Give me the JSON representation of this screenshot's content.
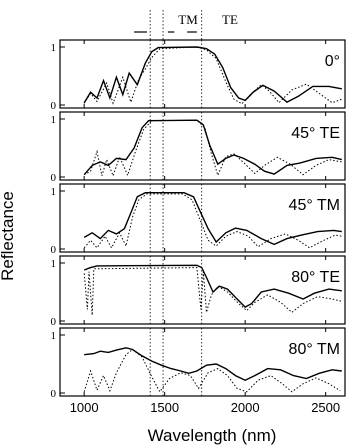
{
  "chart_data": {
    "type": "line",
    "xlabel": "Wavelength (nm)",
    "ylabel": "Reflectance",
    "xlim": [
      850,
      2620
    ],
    "ylim": [
      0,
      1
    ],
    "x_ticks": [
      "1000",
      "1500",
      "2000",
      "2500"
    ],
    "y_ticks": [
      "0",
      "1"
    ],
    "band_labels": [
      "TM",
      "TE"
    ],
    "band_edges_nm": [
      1410,
      1490,
      1730
    ],
    "series_styles": [
      "solid",
      "dotted"
    ],
    "panels": [
      {
        "label": "0°",
        "solid": [
          [
            1000,
            0.04
          ],
          [
            1040,
            0.22
          ],
          [
            1080,
            0.12
          ],
          [
            1120,
            0.42
          ],
          [
            1160,
            0.12
          ],
          [
            1200,
            0.48
          ],
          [
            1240,
            0.18
          ],
          [
            1280,
            0.55
          ],
          [
            1330,
            0.35
          ],
          [
            1380,
            0.72
          ],
          [
            1420,
            0.92
          ],
          [
            1460,
            0.99
          ],
          [
            1700,
            1.0
          ],
          [
            1760,
            0.97
          ],
          [
            1810,
            0.88
          ],
          [
            1860,
            0.65
          ],
          [
            1910,
            0.3
          ],
          [
            1960,
            0.12
          ],
          [
            2000,
            0.08
          ],
          [
            2050,
            0.22
          ],
          [
            2110,
            0.34
          ],
          [
            2180,
            0.24
          ],
          [
            2260,
            0.05
          ],
          [
            2330,
            0.15
          ],
          [
            2420,
            0.32
          ],
          [
            2520,
            0.32
          ],
          [
            2600,
            0.28
          ]
        ],
        "dotted": [
          [
            1000,
            0.03
          ],
          [
            1040,
            0.2
          ],
          [
            1080,
            0.06
          ],
          [
            1140,
            0.38
          ],
          [
            1180,
            0.03
          ],
          [
            1240,
            0.48
          ],
          [
            1290,
            0.05
          ],
          [
            1340,
            0.45
          ],
          [
            1380,
            0.62
          ],
          [
            1420,
            0.82
          ],
          [
            1470,
            0.97
          ],
          [
            1700,
            1.0
          ],
          [
            1760,
            0.95
          ],
          [
            1820,
            0.8
          ],
          [
            1880,
            0.4
          ],
          [
            1930,
            0.1
          ],
          [
            1980,
            0.02
          ],
          [
            2040,
            0.2
          ],
          [
            2100,
            0.35
          ],
          [
            2150,
            0.24
          ],
          [
            2210,
            0.04
          ],
          [
            2290,
            0.26
          ],
          [
            2380,
            0.36
          ],
          [
            2460,
            0.2
          ],
          [
            2540,
            0.04
          ],
          [
            2600,
            0.1
          ]
        ]
      },
      {
        "label": "45° TE",
        "solid": [
          [
            1000,
            0.04
          ],
          [
            1050,
            0.2
          ],
          [
            1100,
            0.26
          ],
          [
            1150,
            0.2
          ],
          [
            1200,
            0.32
          ],
          [
            1260,
            0.3
          ],
          [
            1310,
            0.5
          ],
          [
            1360,
            0.85
          ],
          [
            1400,
            0.97
          ],
          [
            1700,
            0.98
          ],
          [
            1740,
            0.9
          ],
          [
            1780,
            0.55
          ],
          [
            1830,
            0.22
          ],
          [
            1880,
            0.32
          ],
          [
            1930,
            0.38
          ],
          [
            1990,
            0.32
          ],
          [
            2060,
            0.22
          ],
          [
            2120,
            0.1
          ],
          [
            2180,
            0.05
          ],
          [
            2260,
            0.2
          ],
          [
            2340,
            0.24
          ],
          [
            2440,
            0.32
          ],
          [
            2540,
            0.34
          ],
          [
            2600,
            0.3
          ]
        ],
        "dotted": [
          [
            1000,
            0.04
          ],
          [
            1040,
            0.1
          ],
          [
            1080,
            0.44
          ],
          [
            1110,
            0.02
          ],
          [
            1140,
            0.3
          ],
          [
            1180,
            0.02
          ],
          [
            1220,
            0.35
          ],
          [
            1270,
            0.03
          ],
          [
            1320,
            0.45
          ],
          [
            1370,
            0.82
          ],
          [
            1420,
            0.97
          ],
          [
            1700,
            0.98
          ],
          [
            1750,
            0.85
          ],
          [
            1790,
            0.4
          ],
          [
            1830,
            0.03
          ],
          [
            1880,
            0.35
          ],
          [
            1930,
            0.4
          ],
          [
            1990,
            0.25
          ],
          [
            2060,
            0.06
          ],
          [
            2120,
            0.2
          ],
          [
            2200,
            0.34
          ],
          [
            2280,
            0.22
          ],
          [
            2360,
            0.04
          ],
          [
            2440,
            0.2
          ],
          [
            2520,
            0.3
          ],
          [
            2600,
            0.26
          ]
        ]
      },
      {
        "label": "45° TM",
        "solid": [
          [
            1000,
            0.2
          ],
          [
            1050,
            0.28
          ],
          [
            1100,
            0.18
          ],
          [
            1150,
            0.32
          ],
          [
            1200,
            0.26
          ],
          [
            1250,
            0.35
          ],
          [
            1290,
            0.62
          ],
          [
            1330,
            0.9
          ],
          [
            1380,
            0.97
          ],
          [
            1620,
            0.97
          ],
          [
            1680,
            0.9
          ],
          [
            1720,
            0.65
          ],
          [
            1770,
            0.35
          ],
          [
            1820,
            0.12
          ],
          [
            1880,
            0.28
          ],
          [
            1940,
            0.36
          ],
          [
            2010,
            0.32
          ],
          [
            2100,
            0.18
          ],
          [
            2180,
            0.08
          ],
          [
            2260,
            0.18
          ],
          [
            2350,
            0.24
          ],
          [
            2450,
            0.3
          ],
          [
            2550,
            0.32
          ],
          [
            2600,
            0.3
          ]
        ],
        "dotted": [
          [
            1000,
            0.02
          ],
          [
            1040,
            0.15
          ],
          [
            1080,
            0.02
          ],
          [
            1130,
            0.22
          ],
          [
            1170,
            0.02
          ],
          [
            1220,
            0.28
          ],
          [
            1260,
            0.05
          ],
          [
            1300,
            0.55
          ],
          [
            1340,
            0.85
          ],
          [
            1390,
            0.95
          ],
          [
            1610,
            0.95
          ],
          [
            1670,
            0.85
          ],
          [
            1720,
            0.5
          ],
          [
            1770,
            0.15
          ],
          [
            1820,
            0.05
          ],
          [
            1880,
            0.22
          ],
          [
            1950,
            0.3
          ],
          [
            2020,
            0.22
          ],
          [
            2080,
            0.04
          ],
          [
            2160,
            0.18
          ],
          [
            2250,
            0.26
          ],
          [
            2330,
            0.15
          ],
          [
            2400,
            0.02
          ],
          [
            2480,
            0.14
          ],
          [
            2560,
            0.24
          ],
          [
            2600,
            0.22
          ]
        ]
      },
      {
        "label": "80° TE",
        "solid": [
          [
            1000,
            0.88
          ],
          [
            1040,
            0.92
          ],
          [
            1080,
            0.95
          ],
          [
            1700,
            0.96
          ],
          [
            1730,
            0.92
          ],
          [
            1760,
            0.75
          ],
          [
            1800,
            0.5
          ],
          [
            1840,
            0.6
          ],
          [
            1890,
            0.55
          ],
          [
            1950,
            0.38
          ],
          [
            2000,
            0.24
          ],
          [
            2040,
            0.3
          ],
          [
            2100,
            0.5
          ],
          [
            2180,
            0.55
          ],
          [
            2270,
            0.48
          ],
          [
            2360,
            0.38
          ],
          [
            2430,
            0.48
          ],
          [
            2520,
            0.55
          ],
          [
            2600,
            0.52
          ]
        ],
        "dotted": [
          [
            1000,
            0.82
          ],
          [
            1020,
            0.2
          ],
          [
            1030,
            0.85
          ],
          [
            1050,
            0.1
          ],
          [
            1060,
            0.9
          ],
          [
            1700,
            0.92
          ],
          [
            1725,
            0.2
          ],
          [
            1740,
            0.85
          ],
          [
            1760,
            0.15
          ],
          [
            1790,
            0.45
          ],
          [
            1830,
            0.6
          ],
          [
            1890,
            0.5
          ],
          [
            1960,
            0.3
          ],
          [
            2010,
            0.18
          ],
          [
            2060,
            0.32
          ],
          [
            2140,
            0.45
          ],
          [
            2220,
            0.32
          ],
          [
            2290,
            0.15
          ],
          [
            2360,
            0.3
          ],
          [
            2450,
            0.42
          ],
          [
            2540,
            0.38
          ],
          [
            2600,
            0.34
          ]
        ]
      },
      {
        "label": "80° TM",
        "solid": [
          [
            1000,
            0.66
          ],
          [
            1060,
            0.68
          ],
          [
            1100,
            0.72
          ],
          [
            1150,
            0.7
          ],
          [
            1200,
            0.74
          ],
          [
            1260,
            0.78
          ],
          [
            1300,
            0.75
          ],
          [
            1360,
            0.64
          ],
          [
            1420,
            0.55
          ],
          [
            1480,
            0.48
          ],
          [
            1540,
            0.42
          ],
          [
            1600,
            0.38
          ],
          [
            1650,
            0.34
          ],
          [
            1700,
            0.38
          ],
          [
            1760,
            0.48
          ],
          [
            1820,
            0.5
          ],
          [
            1880,
            0.42
          ],
          [
            1940,
            0.3
          ],
          [
            2000,
            0.22
          ],
          [
            2060,
            0.3
          ],
          [
            2140,
            0.42
          ],
          [
            2220,
            0.4
          ],
          [
            2300,
            0.3
          ],
          [
            2380,
            0.25
          ],
          [
            2460,
            0.34
          ],
          [
            2540,
            0.4
          ],
          [
            2600,
            0.38
          ]
        ],
        "dotted": [
          [
            1000,
            0.02
          ],
          [
            1040,
            0.38
          ],
          [
            1080,
            0.05
          ],
          [
            1120,
            0.3
          ],
          [
            1160,
            0.04
          ],
          [
            1200,
            0.35
          ],
          [
            1260,
            0.66
          ],
          [
            1300,
            0.75
          ],
          [
            1360,
            0.62
          ],
          [
            1420,
            0.28
          ],
          [
            1470,
            0.02
          ],
          [
            1530,
            0.25
          ],
          [
            1600,
            0.35
          ],
          [
            1660,
            0.3
          ],
          [
            1710,
            0.08
          ],
          [
            1770,
            0.35
          ],
          [
            1830,
            0.42
          ],
          [
            1890,
            0.3
          ],
          [
            1950,
            0.08
          ],
          [
            2010,
            0.02
          ],
          [
            2080,
            0.22
          ],
          [
            2160,
            0.3
          ],
          [
            2230,
            0.16
          ],
          [
            2290,
            0.02
          ],
          [
            2360,
            0.16
          ],
          [
            2440,
            0.26
          ],
          [
            2520,
            0.16
          ],
          [
            2590,
            0.04
          ]
        ]
      }
    ]
  }
}
